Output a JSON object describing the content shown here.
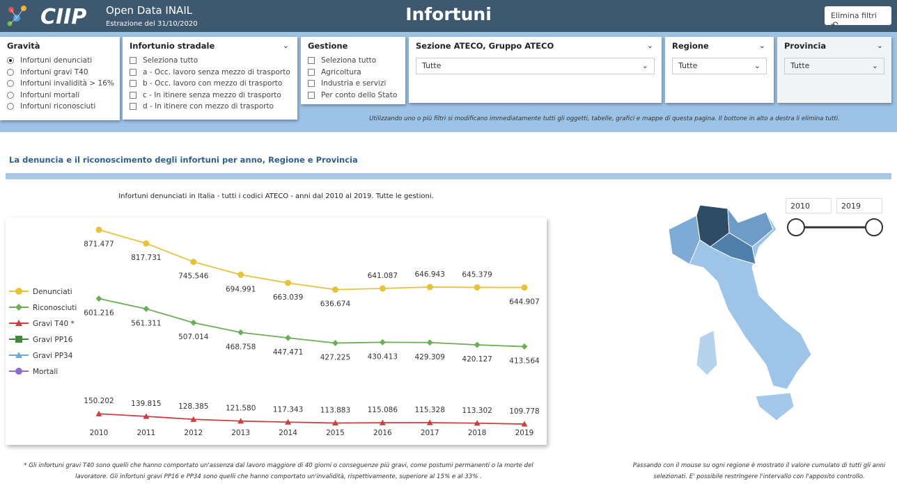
{
  "header": {
    "brand": "Open Data INAIL",
    "extraction": "Estrazione del 31/10/2020",
    "title": "Infortuni",
    "reset_button": "Elimina filtri"
  },
  "filters": {
    "gravita": {
      "title": "Gravità",
      "options": [
        "Infortuni denunciati",
        "Infortuni gravi T40",
        "Infortuni invalidità > 16%",
        "Infortuni mortali",
        "Infortuni riconosciuti"
      ],
      "selected": 0
    },
    "stradale": {
      "title": "Infortunio stradale",
      "options": [
        "Seleziona tutto",
        "a - Occ. lavoro senza mezzo di trasporto",
        "b - Occ. lavoro con mezzo di trasporto",
        "c - In itinere senza mezzo di trasporto",
        "d - In itinere con mezzo di trasporto"
      ]
    },
    "gestione": {
      "title": "Gestione",
      "options": [
        "Seleziona tutto",
        "Agricoltura",
        "Industria e servizi",
        "Per conto dello Stato"
      ]
    },
    "ateco": {
      "title": "Sezione ATECO, Gruppo ATECO",
      "value": "Tutte"
    },
    "regione": {
      "title": "Regione",
      "value": "Tutte"
    },
    "provincia": {
      "title": "Provincia",
      "value": "Tutte"
    }
  },
  "filter_note": "Utilizzando uno o più filtri si modificano immediatamente  tutti gli oggetti, tabelle, grafici e mappe di questa pagina. Il bottone in alto a destra li elimina tutti.",
  "section_title": "La denuncia e il riconoscimento degli infortuni per anno, Regione e Provincia",
  "year_range": {
    "from": "2010",
    "to": "2019"
  },
  "chart_data": {
    "type": "line",
    "title": "Infortuni denunciati in Italia - tutti i codici ATECO  - anni dal 2010 al 2019. Tutte le gestioni.",
    "x": [
      2010,
      2011,
      2012,
      2013,
      2014,
      2015,
      2016,
      2017,
      2018,
      2019
    ],
    "ylim": [
      50000,
      900000
    ],
    "series": [
      {
        "name": "Denunciati",
        "color": "#e8c23a",
        "marker": "circle",
        "values": [
          871477,
          817731,
          745546,
          694991,
          663039,
          636674,
          641087,
          646943,
          645379,
          644907
        ],
        "value_labels": [
          "871.477",
          "817.731",
          "745.546",
          "694.991",
          "663.039",
          "636.674",
          "641.087",
          "646.943",
          "645.379",
          "644.907"
        ]
      },
      {
        "name": "Riconosciuti",
        "color": "#6aae55",
        "marker": "diamond",
        "values": [
          601216,
          561311,
          507014,
          468758,
          447471,
          427225,
          430413,
          429309,
          420127,
          413564
        ],
        "value_labels": [
          "601.216",
          "561.311",
          "507.014",
          "468.758",
          "447.471",
          "427.225",
          "430.413",
          "429.309",
          "420.127",
          "413.564"
        ]
      },
      {
        "name": "Gravi T40 *",
        "color": "#c94040",
        "marker": "triangle",
        "values": [
          150202,
          139815,
          128385,
          121580,
          117343,
          113883,
          115086,
          115328,
          113302,
          109778
        ],
        "value_labels": [
          "150.202",
          "139.815",
          "128.385",
          "121.580",
          "117.343",
          "113.883",
          "115.086",
          "115.328",
          "113.302",
          "109.778"
        ]
      },
      {
        "name": "Gravi PP16",
        "color": "#3d8a3d",
        "marker": "square",
        "values": [
          null,
          null,
          null,
          null,
          null,
          null,
          null,
          null,
          null,
          null
        ]
      },
      {
        "name": "Gravi PP34",
        "color": "#6fa8dc",
        "marker": "triangle",
        "values": [
          null,
          null,
          null,
          null,
          null,
          null,
          null,
          null,
          null,
          null
        ]
      },
      {
        "name": "Mortali",
        "color": "#8e6ccf",
        "marker": "circle",
        "values": [
          null,
          null,
          null,
          null,
          null,
          null,
          null,
          null,
          null,
          null
        ]
      }
    ]
  },
  "footnote": "* Gli infortuni gravi T40 sono quelli che hanno comportato un'assenza dal lavoro maggiore di 40 giorni o conseguenze più gravi, come postumi permanenti o la morte del lavoratore. Gli infortuni gravi PP16 e PP34 sono quelli che hanno comportato un'invalidità, rispettivamente, superiore al 15% e al 33% .",
  "map_note": "Passando con il mouse su ogni regione è mostrato il valore cumulato di tutti gli anni selezionati. E' possibile restringere l'intervallo con l'apposito controllo."
}
